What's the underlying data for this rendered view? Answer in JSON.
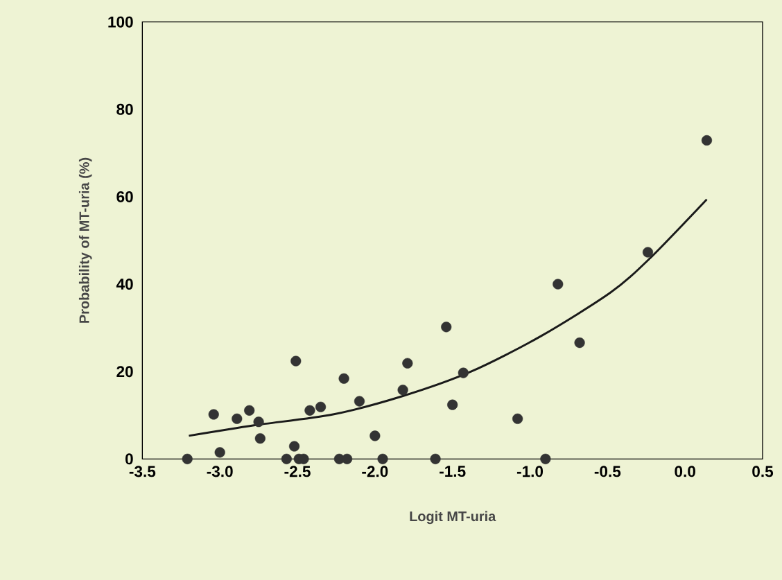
{
  "chart_data": {
    "type": "scatter",
    "xlabel": "Logit MT-uria",
    "ylabel": "Probability of MT-uria (%)",
    "xlim": [
      -3.5,
      0.5
    ],
    "ylim": [
      0,
      100
    ],
    "xticks": [
      {
        "value": -3.5,
        "label": "-3.5"
      },
      {
        "value": -3.0,
        "label": "-3.0"
      },
      {
        "value": -2.5,
        "label": "-2.5"
      },
      {
        "value": -2.0,
        "label": "-2.0"
      },
      {
        "value": -1.5,
        "label": "-1.5"
      },
      {
        "value": -1.0,
        "label": "-1.0"
      },
      {
        "value": -0.5,
        "label": "-0.5"
      },
      {
        "value": 0.0,
        "label": "0.0"
      },
      {
        "value": 0.5,
        "label": "0.5"
      }
    ],
    "yticks": [
      0,
      20,
      40,
      60,
      80,
      100
    ],
    "marker": "circle",
    "grid": false,
    "series": [
      {
        "color": "#333333",
        "x": [
          -3.21,
          -3.04,
          -3.0,
          -2.89,
          -2.81,
          -2.75,
          -2.74,
          -2.57,
          -2.52,
          -2.51,
          -2.49,
          -2.46,
          -2.42,
          -2.35,
          -2.2,
          -2.23,
          -2.18,
          -2.1,
          -2.0,
          -1.95,
          -1.82,
          -1.79,
          -1.61,
          -1.54,
          -1.5,
          -1.43,
          -1.08,
          -0.9,
          -0.82,
          -0.68,
          -0.24,
          0.14
        ],
        "values": [
          0,
          10.2,
          1.5,
          9.2,
          11.1,
          8.5,
          4.7,
          0,
          2.9,
          22.4,
          0,
          0,
          11.1,
          11.9,
          18.4,
          0,
          0,
          13.2,
          5.3,
          0,
          15.8,
          21.9,
          0,
          30.2,
          12.4,
          19.7,
          9.2,
          0,
          40.0,
          26.6,
          47.3,
          72.9
        ]
      },
      {
        "type": "line",
        "marker": "none",
        "color": "#1a1a1a",
        "x": [
          -3.2,
          -2.78,
          -2.27,
          -1.82,
          -1.38,
          -0.93,
          -0.48,
          -0.23,
          0.14
        ],
        "values": [
          5.3,
          7.7,
          10.2,
          14.4,
          20.0,
          28.1,
          38.1,
          45.8,
          59.4
        ]
      }
    ]
  }
}
